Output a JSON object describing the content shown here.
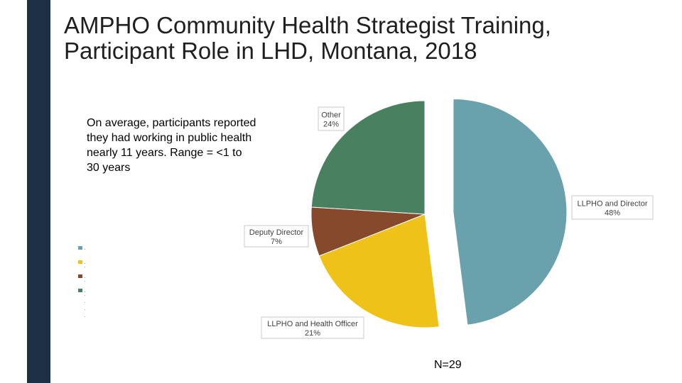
{
  "slide": {
    "title": "AMPHO Community Health Strategist Training, Participant Role in LHD, Montana, 2018",
    "note": "On average, participants reported they had working in public health nearly 11 years.  Range = <1 to 30 years",
    "n_label": "N=29"
  },
  "colors": {
    "accent_bar": "#1e3144"
  },
  "chart_data": {
    "type": "pie",
    "title": "",
    "slices": [
      {
        "label": "LLPHO and Director",
        "value": 48,
        "display": "48%",
        "color": "#69a2ad",
        "exploded": true
      },
      {
        "label": "LLPHO and Health Officer",
        "value": 21,
        "display": "21%",
        "color": "#efc21a",
        "exploded": false
      },
      {
        "label": "Deputy Director",
        "value": 7,
        "display": "7%",
        "color": "#86492b",
        "exploded": false
      },
      {
        "label": "Other",
        "value": 24,
        "display": "24%",
        "color": "#498160",
        "exploded": false
      }
    ],
    "start": "12 o'clock",
    "direction": "clockwise",
    "legend": "left, labels not legible"
  }
}
